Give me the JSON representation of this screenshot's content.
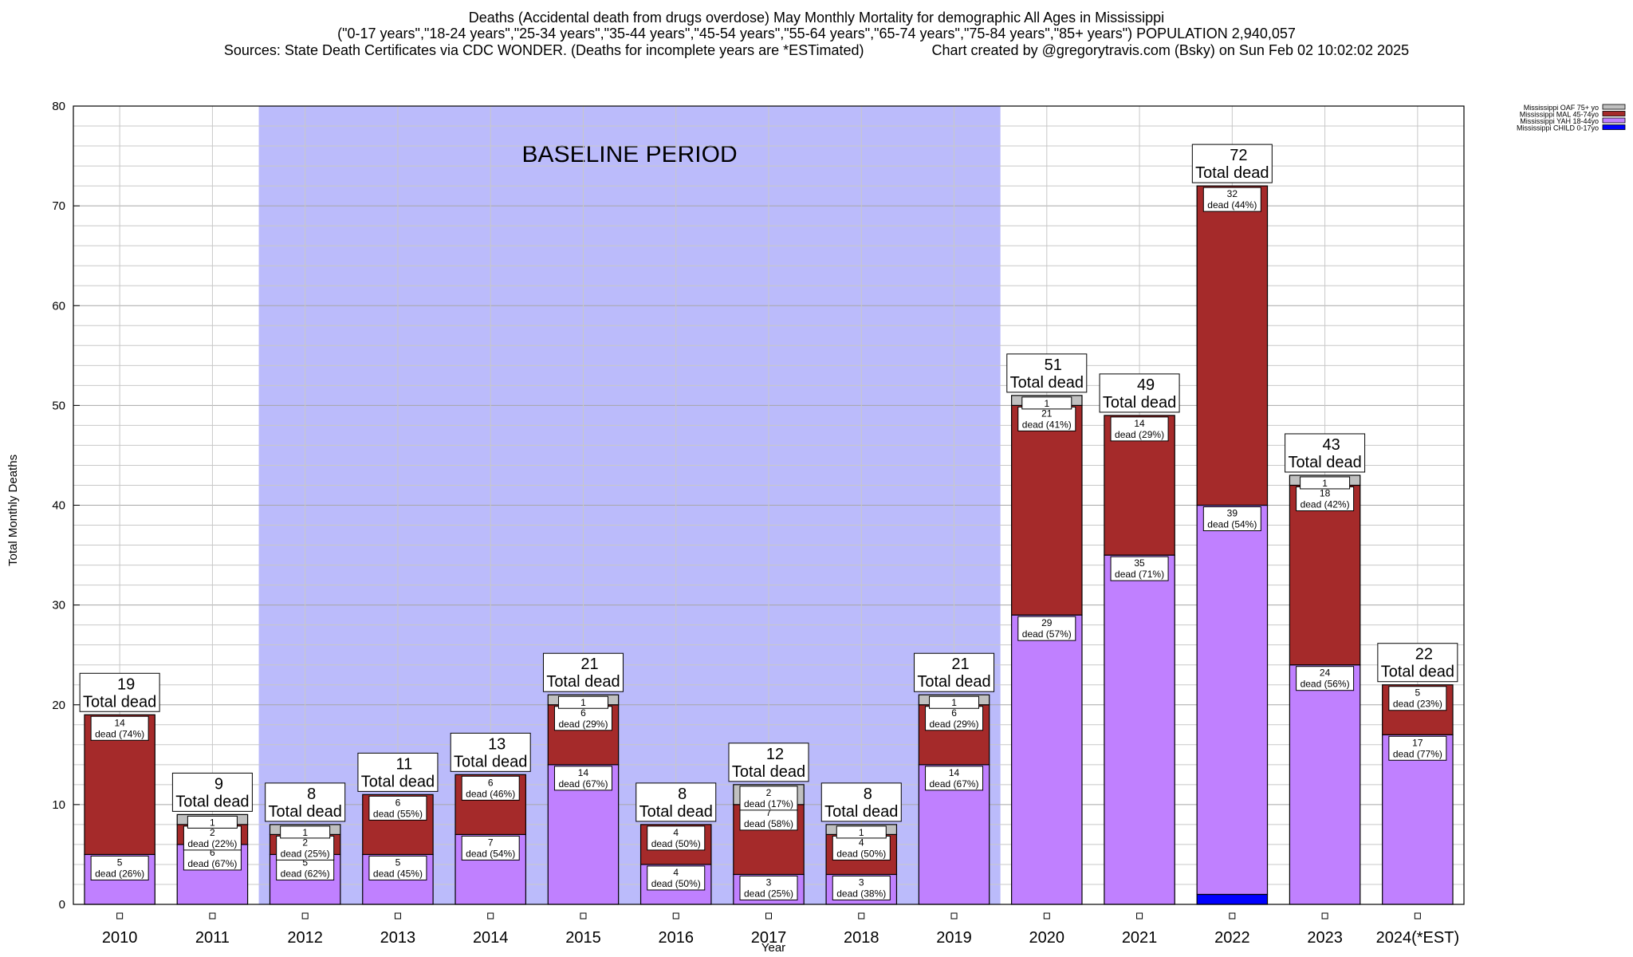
{
  "title": {
    "line1": "Deaths (Accidental death from drugs overdose) May Monthly Mortality for demographic All Ages in Mississippi",
    "line2": "(\"0-17 years\",\"18-24 years\",\"25-34 years\",\"35-44 years\",\"45-54 years\",\"55-64 years\",\"65-74 years\",\"75-84 years\",\"85+ years\") POPULATION 2,940,057",
    "line3": "Sources: State Death Certificates via CDC WONDER. (Deaths for incomplete years are *ESTimated)                 Chart created by @gregorytravis.com (Bsky) on Sun Feb 02 10:02:02 2025"
  },
  "colors": {
    "child": "#0000ff",
    "yah": "#c080ff",
    "mal": "#a52a2a",
    "oaf": "#c0c0c0",
    "baseline": "#bbbbfb"
  },
  "chart_data": {
    "type": "bar",
    "stacked": true,
    "xlabel": "Year",
    "ylabel": "Total Monthly Deaths",
    "ylim": [
      0,
      80
    ],
    "y_ticks": [
      0,
      10,
      20,
      30,
      40,
      50,
      60,
      70,
      80
    ],
    "categories": [
      "2010",
      "2011",
      "2012",
      "2013",
      "2014",
      "2015",
      "2016",
      "2017",
      "2018",
      "2019",
      "2020",
      "2021",
      "2022",
      "2023",
      "2024(*EST)"
    ],
    "series": [
      {
        "name": "Mississippi CHILD 0-17yo",
        "color": "#0000ff",
        "values": [
          0,
          0,
          0,
          0,
          0,
          0,
          0,
          0,
          0,
          0,
          0,
          0,
          1,
          0,
          0
        ]
      },
      {
        "name": "Mississippi YAH 18-44yo",
        "color": "#c080ff",
        "values": [
          5,
          6,
          5,
          5,
          7,
          14,
          4,
          3,
          3,
          14,
          29,
          35,
          39,
          24,
          17
        ]
      },
      {
        "name": "Mississippi MAL 45-74yo",
        "color": "#a52a2a",
        "values": [
          14,
          2,
          2,
          6,
          6,
          6,
          4,
          7,
          4,
          6,
          21,
          14,
          32,
          18,
          5
        ]
      },
      {
        "name": "Mississippi OAF 75+ yo",
        "color": "#c0c0c0",
        "values": [
          0,
          1,
          1,
          0,
          0,
          1,
          0,
          2,
          1,
          1,
          1,
          0,
          0,
          1,
          0
        ]
      }
    ],
    "totals": [
      19,
      9,
      8,
      11,
      13,
      21,
      8,
      12,
      8,
      21,
      51,
      49,
      72,
      43,
      22
    ],
    "total_suffix": "Total dead",
    "segment_labels": {
      "yah": [
        "dead (26%)",
        "dead (67%)",
        "dead (62%)",
        "dead (45%)",
        "dead (54%)",
        "dead (67%)",
        "dead (50%)",
        "dead (25%)",
        "dead (38%)",
        "dead (67%)",
        "dead (57%)",
        "dead (71%)",
        "dead (54%)",
        "dead (56%)",
        "dead (77%)"
      ],
      "mal": [
        "dead (74%)",
        "dead (22%)",
        "dead (25%)",
        "dead (55%)",
        "dead (46%)",
        "dead (29%)",
        "dead (50%)",
        "dead (58%)",
        "dead (50%)",
        "dead (29%)",
        "dead (41%)",
        "dead (29%)",
        "dead (44%)",
        "dead (42%)",
        "dead (23%)"
      ],
      "oaf": [
        "",
        "",
        "",
        "",
        "",
        "",
        "",
        "dead (17%)",
        "",
        "",
        "",
        "",
        "",
        "",
        ""
      ]
    },
    "annotation": "BASELINE PERIOD",
    "baseline_range": [
      "2012",
      "2019"
    ],
    "grid": true,
    "legend_position": "top-right outside"
  }
}
